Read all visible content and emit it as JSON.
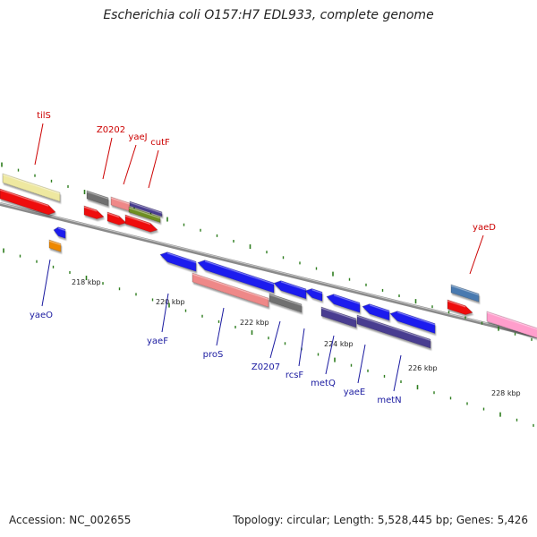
{
  "title": "Escherichia coli O157:H7 EDL933, complete genome",
  "footer": {
    "accession": "Accession: NC_002655",
    "summary": "Topology: circular; Length: 5,528,445 bp; Genes: 5,426"
  },
  "kbp_ticks": [
    {
      "label": "218 kbp",
      "kb": 218
    },
    {
      "label": "220 kbp",
      "kb": 220
    },
    {
      "label": "222 kbp",
      "kb": 222
    },
    {
      "label": "224 kbp",
      "kb": 224
    },
    {
      "label": "226 kbp",
      "kb": 226
    },
    {
      "label": "228 kbp",
      "kb": 228
    }
  ],
  "gene_labels_forward": [
    "tilS",
    "Z0202",
    "yaeJ",
    "cutF",
    "yaeD"
  ],
  "gene_labels_reverse": [
    "yaeO",
    "yaeF",
    "proS",
    "Z0207",
    "rcsF",
    "metQ",
    "yaeE",
    "metN"
  ],
  "colors": {
    "backbone": "#8a8a8a",
    "tick_green": "#2e7d1e",
    "forward_label": "#cc0000",
    "reverse_label": "#1a1aa0",
    "cds_red": "#ee1111",
    "cds_blue": "#1a1aee",
    "gene_yellow": "#eee8a0",
    "gene_gray": "#707070",
    "gene_pink": "#ee8888",
    "gene_purple": "#4a3e90",
    "gene_olive": "#6e8e20",
    "gene_orange": "#ee8800",
    "gene_steelblue": "#4a7ab0",
    "gene_lightpink": "#ff9ecc"
  }
}
